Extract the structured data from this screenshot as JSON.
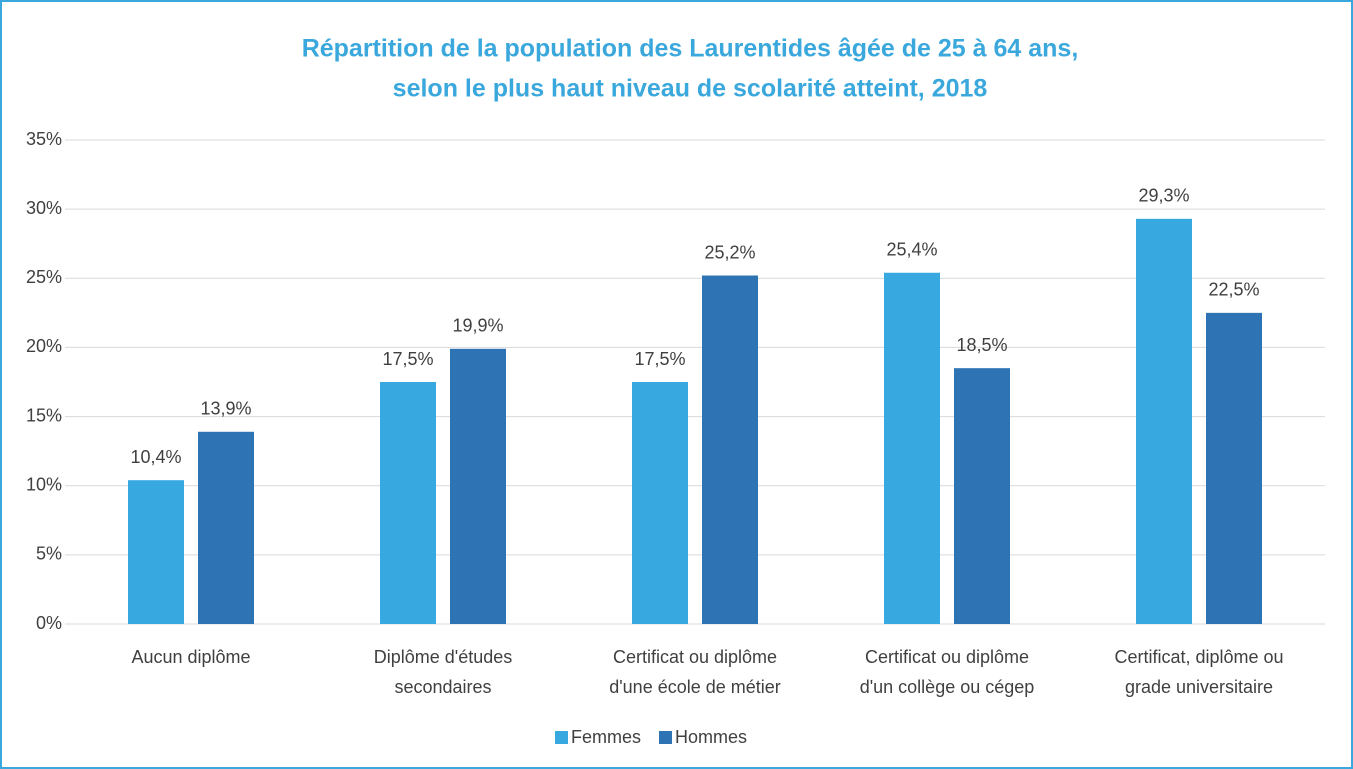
{
  "chart_data": {
    "type": "bar",
    "title": [
      "Répartition de la population des Laurentides âgée de 25 à 64 ans,",
      "selon le plus haut niveau de scolarité atteint, 2018"
    ],
    "categories": [
      [
        "Aucun diplôme"
      ],
      [
        "Diplôme d'études",
        "secondaires"
      ],
      [
        "Certificat ou diplôme",
        "d'une école de métier"
      ],
      [
        "Certificat ou diplôme",
        "d'un collège ou cégep"
      ],
      [
        "Certificat, diplôme ou",
        "grade universitaire"
      ]
    ],
    "series": [
      {
        "name": "Femmes",
        "color": "#38a9e0",
        "values": [
          10.4,
          17.5,
          17.5,
          25.4,
          29.3
        ],
        "value_labels": [
          "10,4%",
          "17,5%",
          "17,5%",
          "25,4%",
          "29,3%"
        ]
      },
      {
        "name": "Hommes",
        "color": "#2e74b5",
        "values": [
          13.9,
          19.9,
          25.2,
          18.5,
          22.5
        ],
        "value_labels": [
          "13,9%",
          "19,9%",
          "25,2%",
          "18,5%",
          "22,5%"
        ]
      }
    ],
    "ylim": [
      0,
      35
    ],
    "yticks": [
      {
        "value": 0,
        "label": "0%"
      },
      {
        "value": 5,
        "label": "5%"
      },
      {
        "value": 10,
        "label": "10%"
      },
      {
        "value": 15,
        "label": "15%"
      },
      {
        "value": 20,
        "label": "20%"
      },
      {
        "value": 25,
        "label": "25%"
      },
      {
        "value": 30,
        "label": "30%"
      },
      {
        "value": 35,
        "label": "35%"
      }
    ],
    "grid": true,
    "legend": "bottom"
  }
}
